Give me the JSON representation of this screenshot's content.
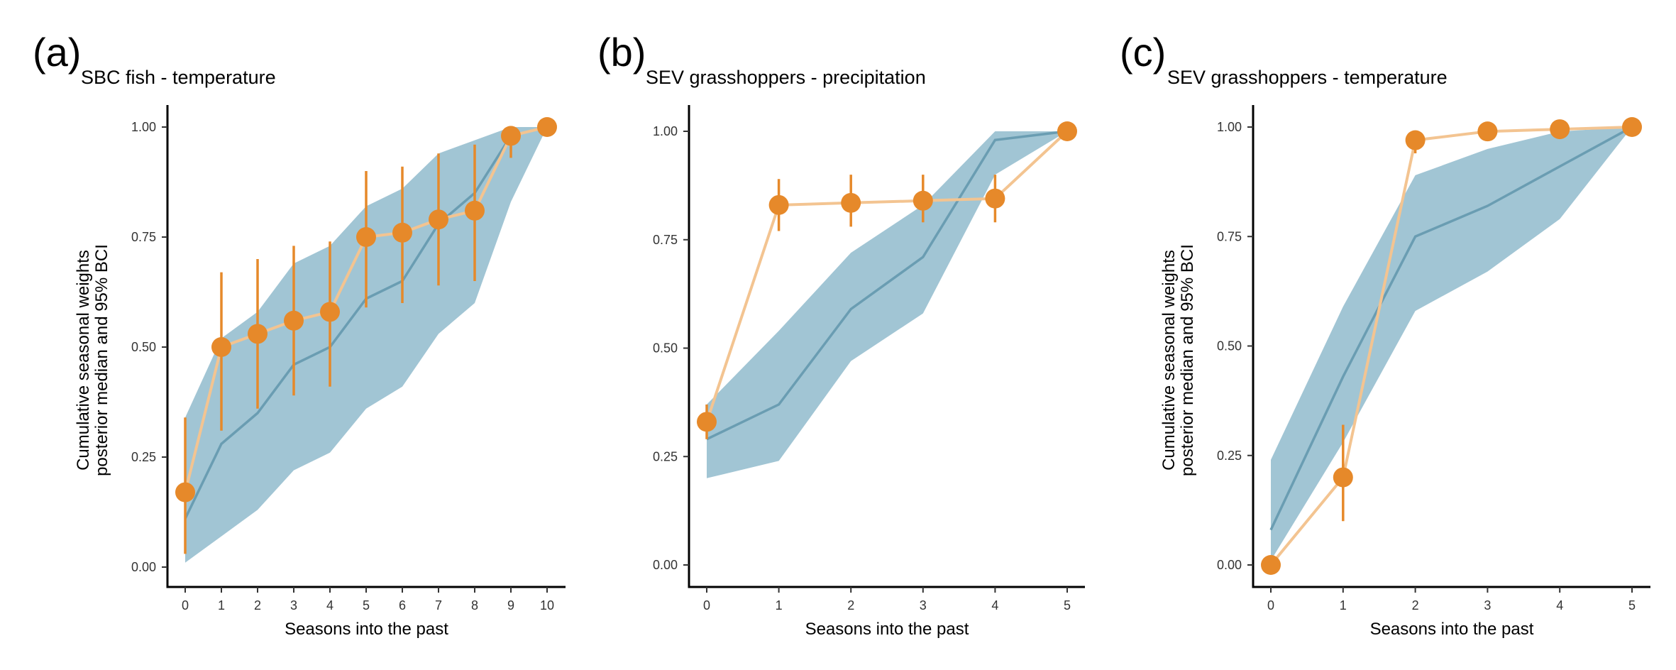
{
  "colors": {
    "band": "#a1c5d4",
    "median_line": "#6a9db2",
    "points": "#e6892a",
    "point_line": "#f3c491",
    "error_bars": "#e6892a",
    "axis": "#000000"
  },
  "chart_data": [
    {
      "type": "line",
      "panel_label": "(a)",
      "title": "SBC fish - temperature",
      "xlabel": "Seasons into the past",
      "ylabel": [
        "Cumulative seasonal weights",
        "posterior median and 95% BCI"
      ],
      "xlim": [
        0,
        10
      ],
      "ylim": [
        0,
        1
      ],
      "x_ticks": [
        "0",
        "1",
        "2",
        "3",
        "4",
        "5",
        "6",
        "7",
        "8",
        "9",
        "10"
      ],
      "y_ticks": [
        "0.00",
        "0.25",
        "0.50",
        "0.75",
        "1.00"
      ],
      "grid": false,
      "x": [
        0,
        1,
        2,
        3,
        4,
        5,
        6,
        7,
        8,
        9,
        10
      ],
      "band": {
        "median": [
          0.11,
          0.28,
          0.35,
          0.46,
          0.5,
          0.61,
          0.65,
          0.78,
          0.85,
          0.98,
          1.0
        ],
        "lower": [
          0.01,
          0.07,
          0.13,
          0.22,
          0.26,
          0.36,
          0.41,
          0.53,
          0.6,
          0.83,
          1.0
        ],
        "upper": [
          0.34,
          0.52,
          0.58,
          0.69,
          0.73,
          0.82,
          0.86,
          0.94,
          0.97,
          1.0,
          1.0
        ]
      },
      "points": {
        "values": [
          0.17,
          0.5,
          0.53,
          0.56,
          0.58,
          0.75,
          0.76,
          0.79,
          0.81,
          0.98,
          1.0
        ],
        "lower": [
          0.03,
          0.31,
          0.36,
          0.39,
          0.41,
          0.59,
          0.6,
          0.64,
          0.65,
          0.93,
          1.0
        ],
        "upper": [
          0.34,
          0.67,
          0.7,
          0.73,
          0.74,
          0.9,
          0.91,
          0.94,
          0.96,
          1.0,
          1.0
        ]
      }
    },
    {
      "type": "line",
      "panel_label": "(b)",
      "title": "SEV grasshoppers - precipitation",
      "xlabel": "Seasons into the past",
      "ylabel": [],
      "xlim": [
        0,
        5
      ],
      "ylim": [
        0,
        1
      ],
      "x_ticks": [
        "0",
        "1",
        "2",
        "3",
        "4",
        "5"
      ],
      "y_ticks": [
        "0.00",
        "0.25",
        "0.50",
        "0.75",
        "1.00"
      ],
      "grid": false,
      "x": [
        0,
        1,
        2,
        3,
        4,
        5
      ],
      "band": {
        "median": [
          0.29,
          0.37,
          0.59,
          0.71,
          0.98,
          1.0
        ],
        "lower": [
          0.2,
          0.24,
          0.47,
          0.58,
          0.9,
          1.0
        ],
        "upper": [
          0.37,
          0.54,
          0.72,
          0.83,
          1.0,
          1.0
        ]
      },
      "points": {
        "values": [
          0.33,
          0.83,
          0.835,
          0.84,
          0.845,
          1.0
        ],
        "lower": [
          0.29,
          0.77,
          0.78,
          0.79,
          0.79,
          1.0
        ],
        "upper": [
          0.37,
          0.89,
          0.9,
          0.9,
          0.9,
          1.0
        ]
      }
    },
    {
      "type": "line",
      "panel_label": "(c)",
      "title": "SEV grasshoppers - temperature",
      "xlabel": "Seasons into the past",
      "ylabel": [
        "Cumulative seasonal weights",
        "posterior median and 95% BCI"
      ],
      "xlim": [
        0,
        5
      ],
      "ylim": [
        0,
        1
      ],
      "x_ticks": [
        "0",
        "1",
        "2",
        "3",
        "4",
        "5"
      ],
      "y_ticks": [
        "0.00",
        "0.25",
        "0.50",
        "0.75",
        "1.00"
      ],
      "grid": false,
      "x": [
        0,
        1,
        2,
        3,
        4,
        5
      ],
      "band": {
        "median": [
          0.08,
          0.43,
          0.75,
          0.82,
          0.91,
          1.0
        ],
        "lower": [
          0.01,
          0.28,
          0.58,
          0.67,
          0.79,
          1.0
        ],
        "upper": [
          0.24,
          0.59,
          0.89,
          0.95,
          0.99,
          1.0
        ]
      },
      "points": {
        "values": [
          0.0,
          0.2,
          0.97,
          0.99,
          0.995,
          1.0
        ],
        "lower": [
          0.0,
          0.1,
          0.94,
          0.98,
          0.99,
          1.0
        ],
        "upper": [
          0.01,
          0.32,
          0.99,
          1.0,
          1.0,
          1.0
        ]
      }
    }
  ]
}
